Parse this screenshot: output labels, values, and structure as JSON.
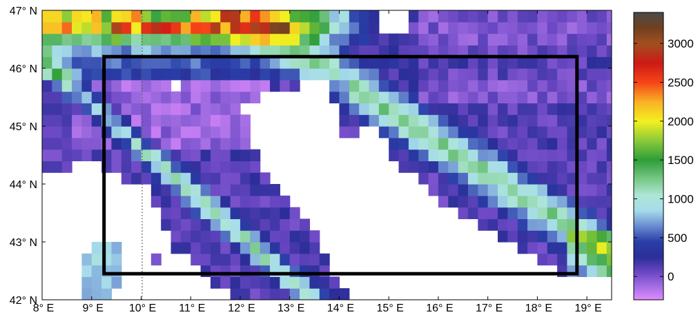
{
  "map": {
    "title": "",
    "lon_range": [
      8,
      19.5
    ],
    "lat_range": [
      42,
      47
    ],
    "lon_ticks": [
      {
        "value": 8,
        "label": "8° E"
      },
      {
        "value": 9,
        "label": "9° E"
      },
      {
        "value": 10,
        "label": "10° E"
      },
      {
        "value": 11,
        "label": "11° E"
      },
      {
        "value": 12,
        "label": "12° E"
      },
      {
        "value": 13,
        "label": "13° E"
      },
      {
        "value": 14,
        "label": "14° E"
      },
      {
        "value": 15,
        "label": "15° E"
      },
      {
        "value": 16,
        "label": "16° E"
      },
      {
        "value": 17,
        "label": "17° E"
      },
      {
        "value": 18,
        "label": "18° E"
      },
      {
        "value": 19,
        "label": "19° E"
      }
    ],
    "lat_ticks": [
      {
        "value": 47,
        "label": "47° N"
      },
      {
        "value": 46,
        "label": "46° N"
      },
      {
        "value": 45,
        "label": "45° N"
      },
      {
        "value": 44,
        "label": "44° N"
      },
      {
        "value": 43,
        "label": "43° N"
      },
      {
        "value": 42,
        "label": "42° N"
      }
    ],
    "grid_resolution_deg": 0.2,
    "sea_color": "#ffffff",
    "dotted_meridian_lon": 10.02,
    "domain_box": {
      "lon_min": 9.25,
      "lon_max": 18.8,
      "lat_min": 42.45,
      "lat_max": 46.2,
      "color": "#000000"
    }
  },
  "colorbar": {
    "min": -300,
    "max": 3400,
    "ticks": [
      {
        "value": 0,
        "label": "0"
      },
      {
        "value": 500,
        "label": "500"
      },
      {
        "value": 1000,
        "label": "1000"
      },
      {
        "value": 1500,
        "label": "1500"
      },
      {
        "value": 2000,
        "label": "2000"
      },
      {
        "value": 2500,
        "label": "2500"
      },
      {
        "value": 3000,
        "label": "3000"
      }
    ],
    "stops": [
      {
        "value": -300,
        "color": "#e08cff"
      },
      {
        "value": -100,
        "color": "#9a68de"
      },
      {
        "value": 50,
        "color": "#6b48c4"
      },
      {
        "value": 250,
        "color": "#2b2e98"
      },
      {
        "value": 450,
        "color": "#2a3ea8"
      },
      {
        "value": 650,
        "color": "#6a8cd0"
      },
      {
        "value": 850,
        "color": "#a6dcea"
      },
      {
        "value": 1050,
        "color": "#aee6d4"
      },
      {
        "value": 1250,
        "color": "#78c888"
      },
      {
        "value": 1500,
        "color": "#2e9e38"
      },
      {
        "value": 1750,
        "color": "#8cca3a"
      },
      {
        "value": 2000,
        "color": "#f4f020"
      },
      {
        "value": 2250,
        "color": "#f9b025"
      },
      {
        "value": 2500,
        "color": "#f64418"
      },
      {
        "value": 2750,
        "color": "#cc1a16"
      },
      {
        "value": 3000,
        "color": "#a05020"
      },
      {
        "value": 3200,
        "color": "#704020"
      },
      {
        "value": 3400,
        "color": "#4a4a4a"
      }
    ]
  }
}
